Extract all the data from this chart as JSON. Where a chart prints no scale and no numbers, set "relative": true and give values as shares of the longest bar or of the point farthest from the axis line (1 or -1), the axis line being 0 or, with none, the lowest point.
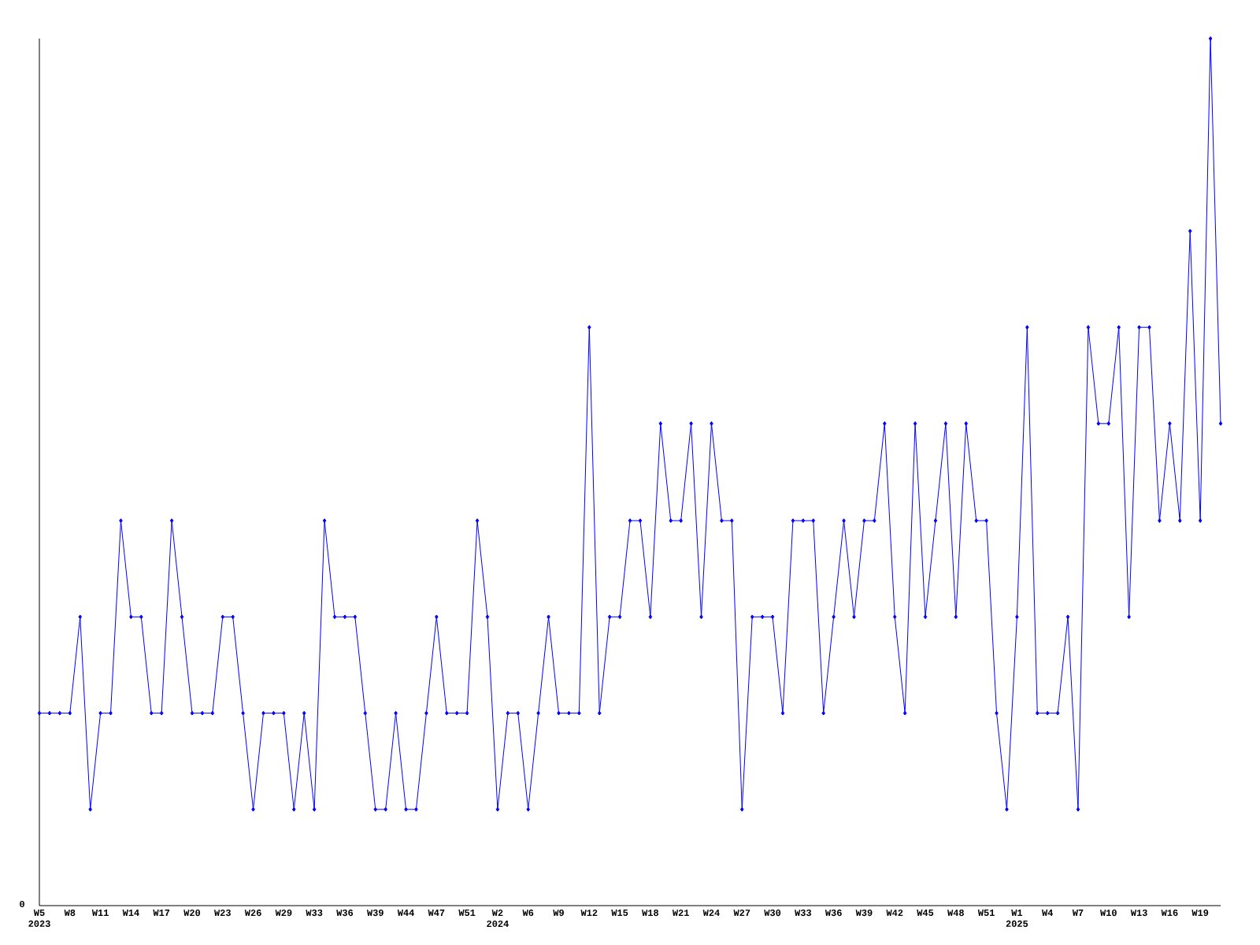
{
  "chart_data": {
    "type": "line",
    "relative": true,
    "color": "#0000ff",
    "marker": "diamond",
    "line_style": "solid",
    "grid": false,
    "categories": [
      "W5 2023",
      null,
      null,
      "W8",
      null,
      null,
      "W11",
      null,
      null,
      "W14",
      null,
      null,
      "W17",
      null,
      null,
      "W20",
      null,
      null,
      "W23",
      null,
      null,
      "W26",
      null,
      null,
      "W29",
      null,
      null,
      "W33",
      null,
      null,
      "W36",
      null,
      null,
      "W39",
      null,
      null,
      "W44",
      null,
      null,
      "W47",
      null,
      null,
      "W51",
      null,
      null,
      "W2 2024",
      null,
      null,
      "W6",
      null,
      null,
      "W9",
      null,
      null,
      "W12",
      null,
      null,
      "W15",
      null,
      null,
      "W18",
      null,
      null,
      "W21",
      null,
      null,
      "W24",
      null,
      null,
      "W27",
      null,
      null,
      "W30",
      null,
      null,
      "W33",
      null,
      null,
      "W36",
      null,
      null,
      "W39",
      null,
      null,
      "W42",
      null,
      null,
      "W45",
      null,
      null,
      "W48",
      null,
      null,
      "W51",
      null,
      null,
      "W1 2025",
      null,
      null,
      "W4",
      null,
      null,
      "W7",
      null,
      null,
      "W10",
      null,
      null,
      "W13",
      null,
      null,
      "W16",
      null,
      null,
      "W19",
      null,
      null
    ],
    "values": [
      0.222,
      0.222,
      0.222,
      0.222,
      0.333,
      0.111,
      0.222,
      0.222,
      0.444,
      0.333,
      0.333,
      0.222,
      0.222,
      0.444,
      0.333,
      0.222,
      0.222,
      0.222,
      0.333,
      0.333,
      0.222,
      0.111,
      0.222,
      0.222,
      0.222,
      0.111,
      0.222,
      0.111,
      0.444,
      0.333,
      0.333,
      0.333,
      0.222,
      0.111,
      0.111,
      0.222,
      0.111,
      0.111,
      0.222,
      0.333,
      0.222,
      0.222,
      0.222,
      0.444,
      0.333,
      0.111,
      0.222,
      0.222,
      0.111,
      0.222,
      0.333,
      0.222,
      0.222,
      0.222,
      0.667,
      0.222,
      0.333,
      0.333,
      0.444,
      0.444,
      0.333,
      0.556,
      0.444,
      0.444,
      0.556,
      0.333,
      0.556,
      0.444,
      0.444,
      0.111,
      0.333,
      0.333,
      0.333,
      0.222,
      0.444,
      0.444,
      0.444,
      0.222,
      0.333,
      0.444,
      0.333,
      0.444,
      0.444,
      0.556,
      0.333,
      0.222,
      0.556,
      0.333,
      0.444,
      0.556,
      0.333,
      0.556,
      0.444,
      0.444,
      0.222,
      0.111,
      0.333,
      0.667,
      0.222,
      0.222,
      0.222,
      0.333,
      0.111,
      0.667,
      0.556,
      0.556,
      0.667,
      0.333,
      0.667,
      0.667,
      0.444,
      0.556,
      0.444,
      0.778,
      0.444,
      1,
      0.556
    ],
    "annotations": [
      "0"
    ]
  }
}
